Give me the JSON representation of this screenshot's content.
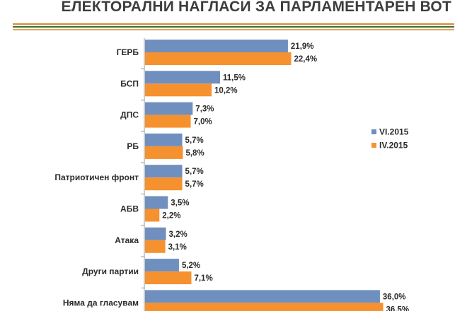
{
  "title": "ЕЛЕКТОРАЛНИ НАГЛАСИ ЗА ПАРЛАМЕНТАРЕН ВОТ",
  "colors": {
    "rule_top": "#d98b2b",
    "rule_mid": "#3e6f3e",
    "rule_bottom": "#e3a45a",
    "series_vi": "#6f8fbf",
    "series_iv": "#f5922f",
    "text": "#2b2b2b",
    "axis": "#9a9a9a"
  },
  "chart_data": {
    "type": "bar",
    "orientation": "horizontal",
    "categories": [
      "ГЕРБ",
      "БСП",
      "ДПС",
      "РБ",
      "Патриотичен фронт",
      "АБВ",
      "Атака",
      "Други партии",
      "Няма да гласувам"
    ],
    "series": [
      {
        "name": "VI.2015",
        "values": [
          21.9,
          11.5,
          7.3,
          5.7,
          5.7,
          3.5,
          3.2,
          5.2,
          36.0
        ],
        "labels": [
          "21,9%",
          "11,5%",
          "7,3%",
          "5,7%",
          "5,7%",
          "3,5%",
          "3,2%",
          "5,2%",
          "36,0%"
        ]
      },
      {
        "name": "IV.2015",
        "values": [
          22.4,
          10.2,
          7.0,
          5.8,
          5.7,
          2.2,
          3.1,
          7.1,
          36.5
        ],
        "labels": [
          "22,4%",
          "10,2%",
          "7,0%",
          "5,8%",
          "5,7%",
          "2,2%",
          "3,1%",
          "7,1%",
          "36,5%"
        ]
      }
    ],
    "legend_position": "right",
    "grid": false,
    "xlim": [
      0,
      40
    ]
  }
}
